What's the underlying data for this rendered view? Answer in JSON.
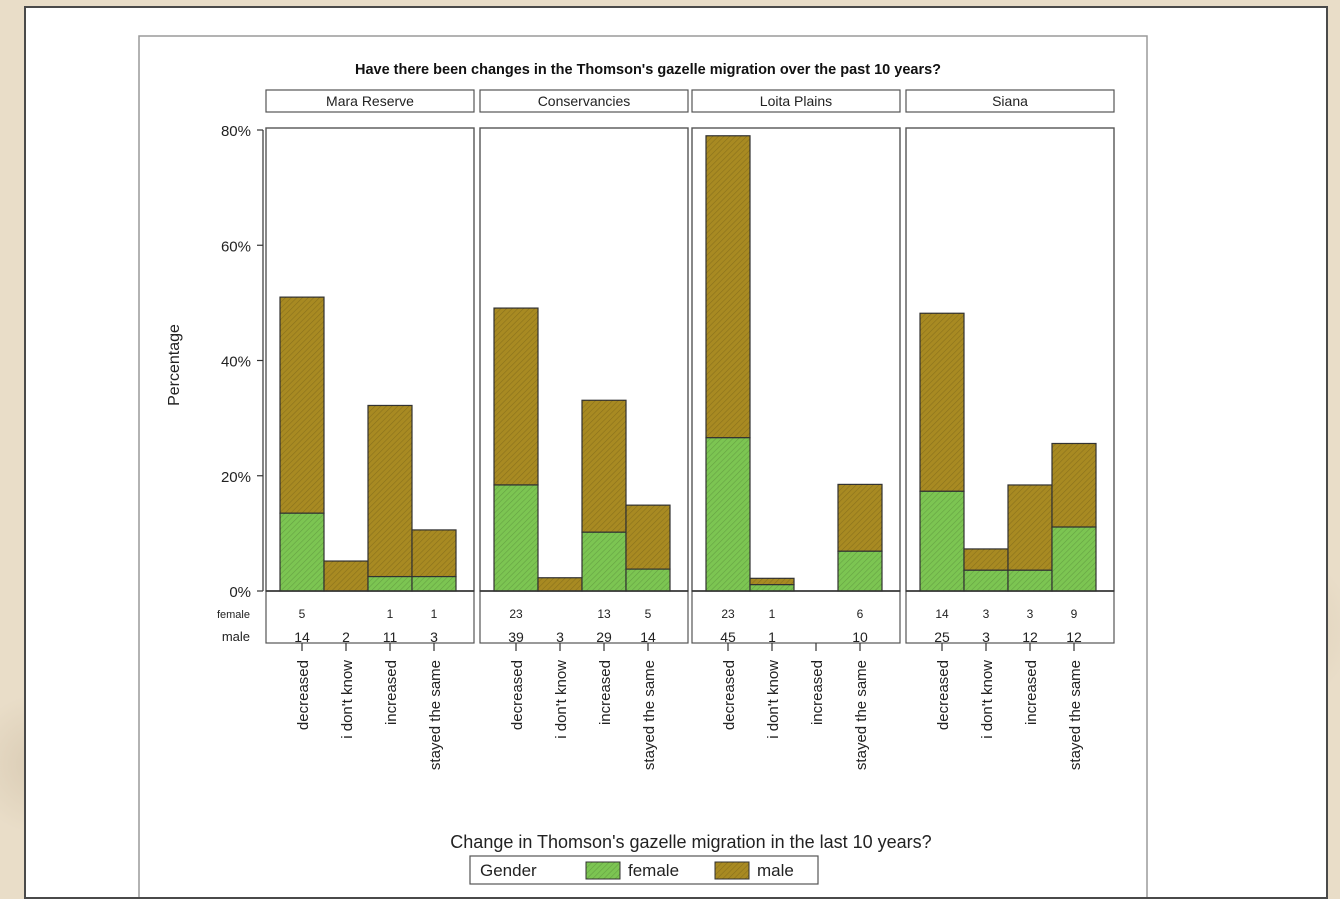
{
  "colors": {
    "female": "#7cc552",
    "male": "#a88a22",
    "frame": "#555555",
    "background_card": "#ffffff"
  },
  "chart_data": {
    "type": "bar",
    "stacked": true,
    "title": "Have there been changes in the Thomson's gazelle migration over the past 10 years?",
    "xlabel": "Change in Thomson's gazelle migration in the last 10 years?",
    "ylabel": "Percentage",
    "ylim": [
      0,
      80
    ],
    "yticks": [
      "0%",
      "20%",
      "40%",
      "60%",
      "80%"
    ],
    "categories": [
      "decreased",
      "i don't know",
      "increased",
      "stayed the same"
    ],
    "count_row_labels": [
      "female",
      "male"
    ],
    "legend": {
      "title": "Gender",
      "entries": [
        "female",
        "male"
      ],
      "placement": "bottom"
    },
    "panels": [
      {
        "name": "Mara Reserve",
        "female_pct": [
          13.5,
          0,
          2.5,
          2.5
        ],
        "total_pct": [
          51,
          5.2,
          32.2,
          10.6
        ],
        "female_n": [
          "5",
          "",
          "1",
          "1"
        ],
        "male_n": [
          "14",
          "2",
          "11",
          "3"
        ]
      },
      {
        "name": "Conservancies",
        "female_pct": [
          18.4,
          0,
          10.2,
          3.8
        ],
        "total_pct": [
          49.1,
          2.3,
          33.1,
          14.9
        ],
        "female_n": [
          "23",
          "",
          "13",
          "5"
        ],
        "male_n": [
          "39",
          "3",
          "29",
          "14"
        ]
      },
      {
        "name": "Loita Plains",
        "female_pct": [
          26.6,
          1.1,
          0,
          6.9
        ],
        "total_pct": [
          79,
          2.2,
          0,
          18.5
        ],
        "female_n": [
          "23",
          "1",
          "",
          "6"
        ],
        "male_n": [
          "45",
          "1",
          "",
          "10"
        ]
      },
      {
        "name": "Siana",
        "female_pct": [
          17.3,
          3.6,
          3.6,
          11.1
        ],
        "total_pct": [
          48.2,
          7.3,
          18.4,
          25.6
        ],
        "female_n": [
          "14",
          "3",
          "3",
          "9"
        ],
        "male_n": [
          "25",
          "3",
          "12",
          "12"
        ]
      }
    ]
  }
}
